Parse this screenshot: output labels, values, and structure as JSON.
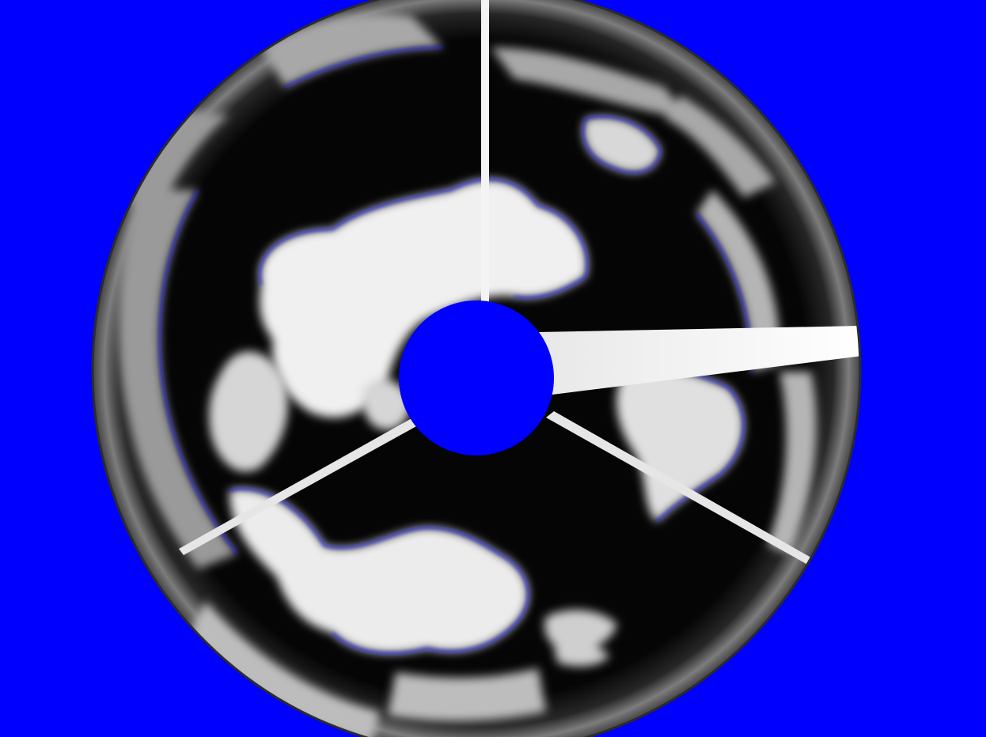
{
  "image": {
    "mask_color": "#0000fe",
    "sky_color": "#050505",
    "cloud_color": "#f2f2f2",
    "cloud_edge_color": "#1c1cff",
    "rim_color": "#3a3a3a",
    "camera_arm_color": "#ffffff",
    "occluder_color": "#0000fe"
  }
}
